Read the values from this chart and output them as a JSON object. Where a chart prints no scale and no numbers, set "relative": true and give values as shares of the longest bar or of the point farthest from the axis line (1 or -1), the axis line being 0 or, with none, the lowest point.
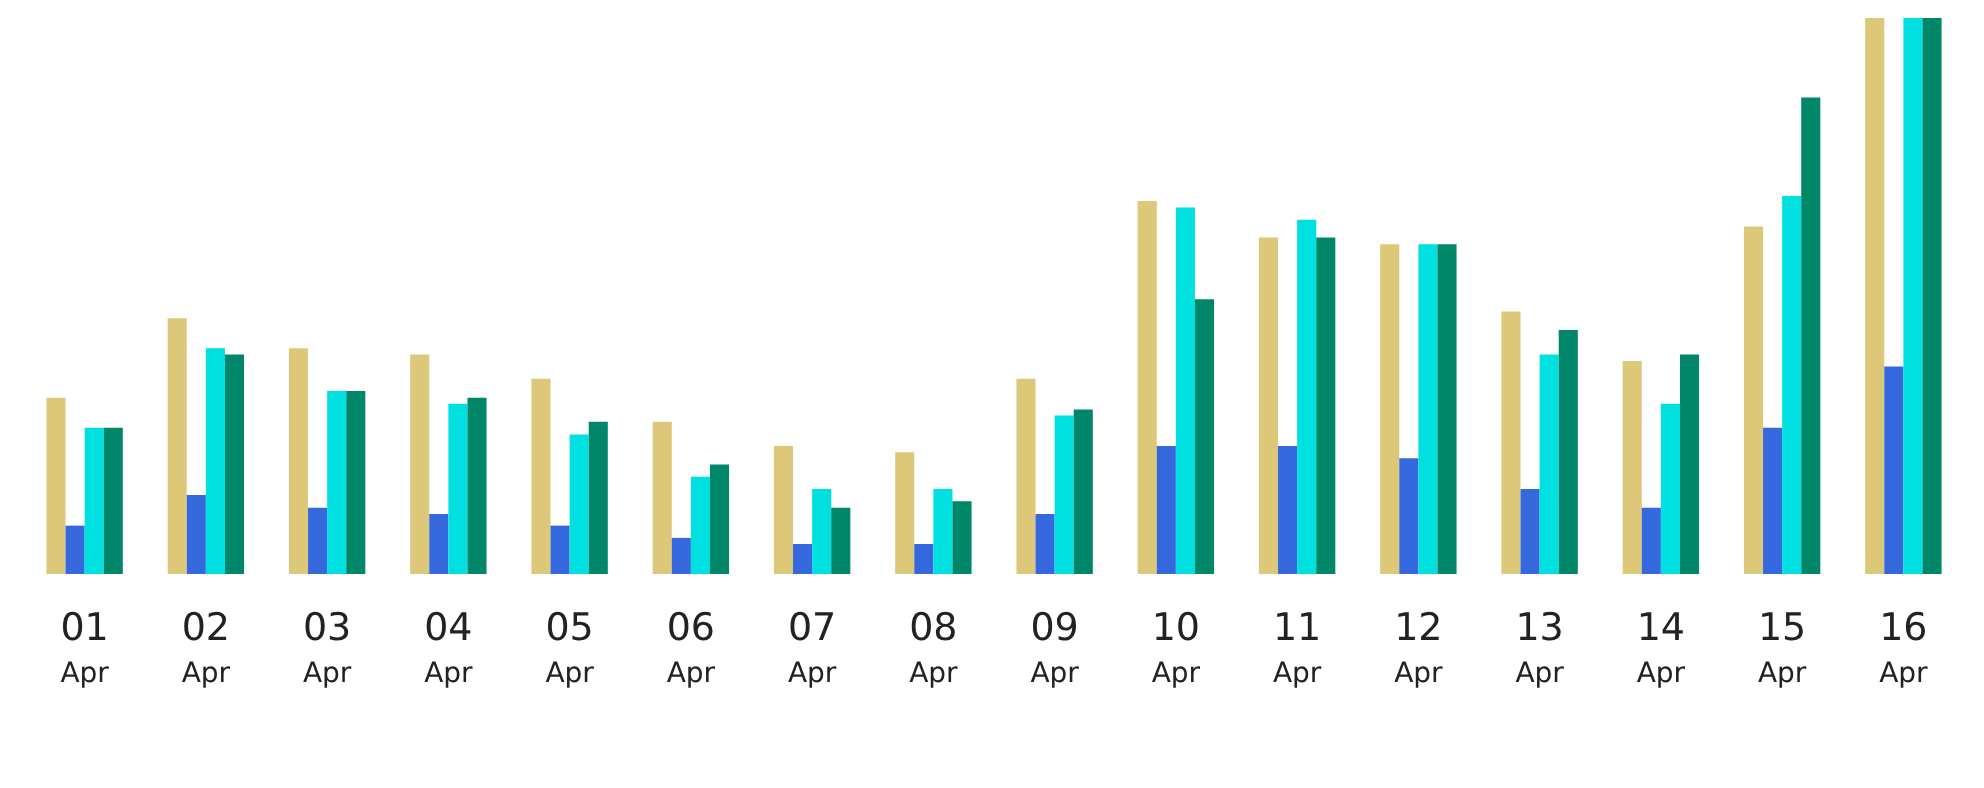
{
  "chart_data": {
    "type": "bar",
    "relative": true,
    "categories": [
      "01\nApr",
      "02\nApr",
      "03\nApr",
      "04\nApr",
      "05\nApr",
      "06\nApr",
      "07\nApr",
      "08\nApr",
      "09\nApr",
      "10\nApr",
      "11\nApr",
      "12\nApr",
      "13\nApr",
      "14\nApr",
      "15\nApr",
      "16\nApr"
    ],
    "series": [
      {
        "color": "#dcc878",
        "values": [
          0.317,
          0.46,
          0.406,
          0.395,
          0.351,
          0.274,
          0.23,
          0.219,
          0.351,
          0.671,
          0.605,
          0.593,
          0.472,
          0.383,
          0.625,
          1
        ]
      },
      {
        "color": "#3468dc",
        "values": [
          0.087,
          0.142,
          0.119,
          0.108,
          0.087,
          0.065,
          0.054,
          0.054,
          0.108,
          0.23,
          0.23,
          0.208,
          0.153,
          0.119,
          0.263,
          0.373
        ]
      },
      {
        "color": "#00e0e0",
        "values": [
          0.263,
          0.406,
          0.329,
          0.306,
          0.251,
          0.175,
          0.153,
          0.153,
          0.285,
          0.659,
          0.637,
          0.593,
          0.395,
          0.306,
          0.68,
          1
        ]
      },
      {
        "color": "#00876a",
        "values": [
          0.263,
          0.395,
          0.329,
          0.317,
          0.274,
          0.197,
          0.119,
          0.131,
          0.296,
          0.494,
          0.605,
          0.593,
          0.439,
          0.395,
          0.857,
          1
        ]
      }
    ]
  }
}
